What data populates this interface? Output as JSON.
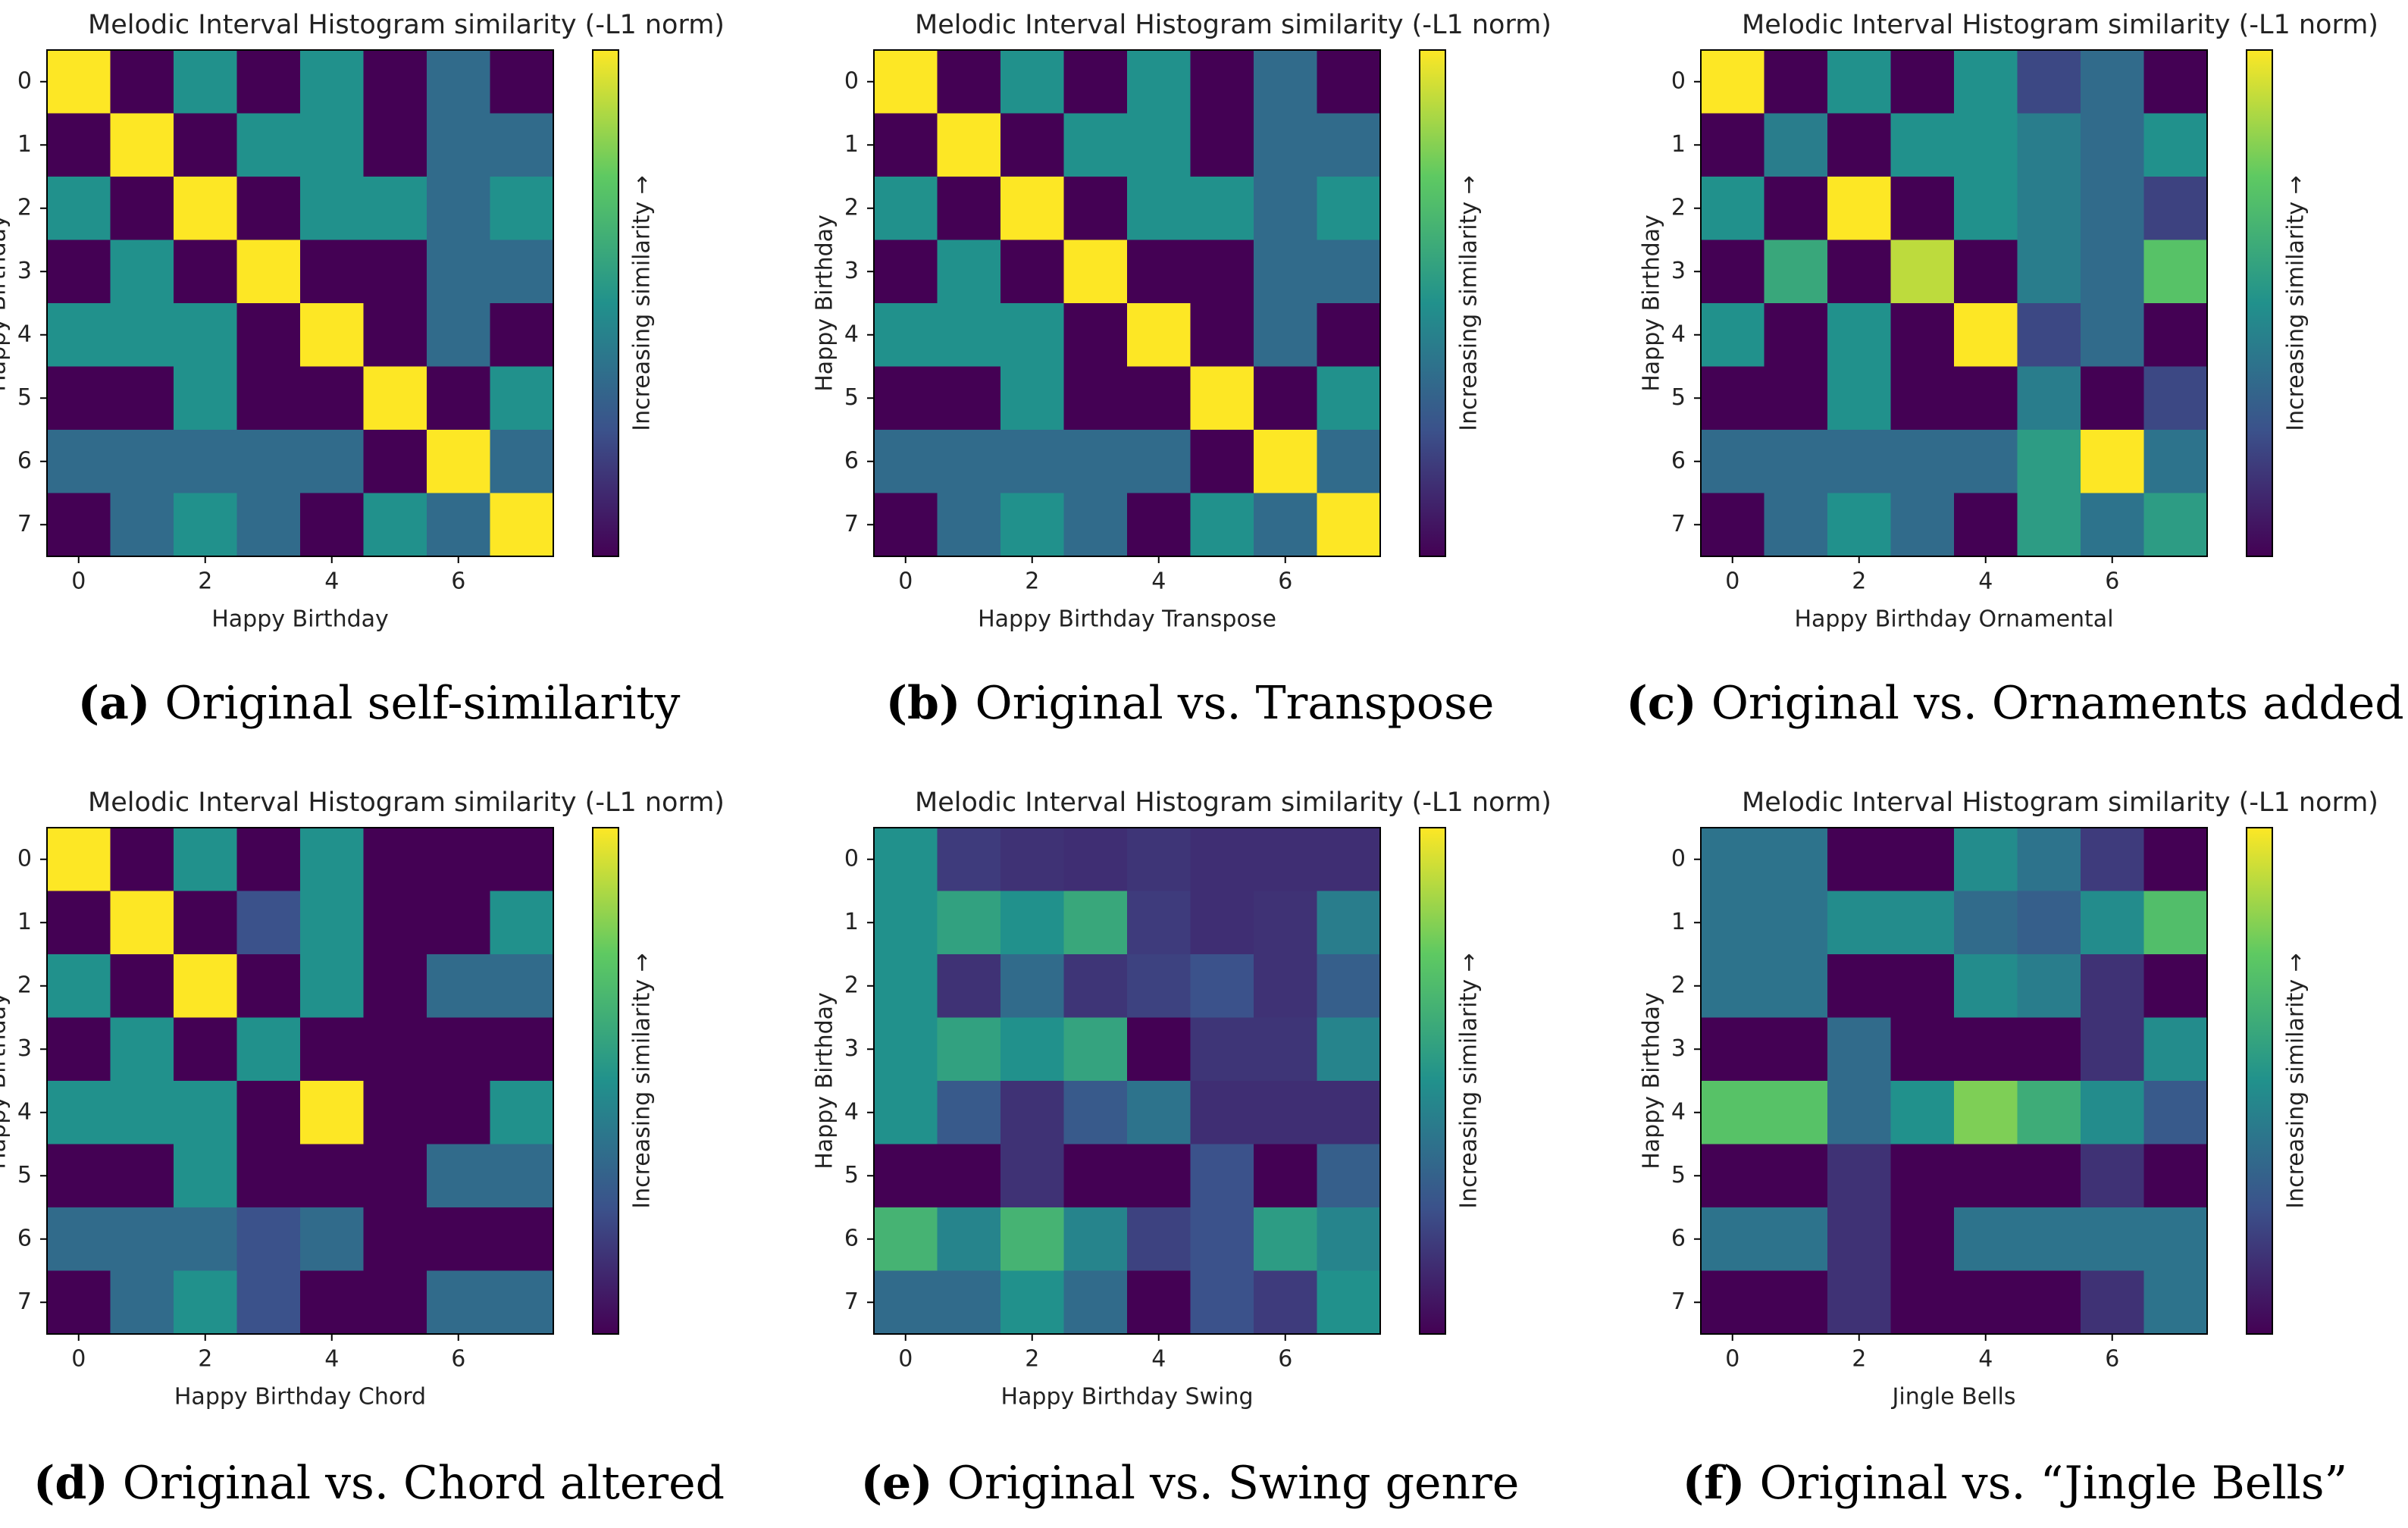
{
  "colormap": {
    "name": "viridis",
    "stops": [
      "#440154",
      "#3b528b",
      "#21918c",
      "#5ec962",
      "#fde725"
    ]
  },
  "colorbar_label": "Increasing similarity →",
  "chart_data": [
    {
      "type": "heatmap",
      "title": "Melodic Interval Histogram similarity (-L1 norm)",
      "xlabel": "Happy Birthday",
      "ylabel": "Happy Birthday",
      "x_ticks": [
        0,
        2,
        4,
        6
      ],
      "y_ticks": [
        0,
        1,
        2,
        3,
        4,
        5,
        6,
        7
      ],
      "vrange": [
        0,
        1
      ],
      "caption_letter": "(a)",
      "caption_text": " Original self-similarity",
      "values": [
        [
          1.0,
          0.0,
          0.5,
          0.0,
          0.5,
          0.0,
          0.35,
          0.0
        ],
        [
          0.0,
          1.0,
          0.0,
          0.5,
          0.5,
          0.0,
          0.35,
          0.35
        ],
        [
          0.5,
          0.0,
          1.0,
          0.0,
          0.5,
          0.5,
          0.35,
          0.5
        ],
        [
          0.0,
          0.5,
          0.0,
          1.0,
          0.0,
          0.0,
          0.35,
          0.35
        ],
        [
          0.5,
          0.5,
          0.5,
          0.0,
          1.0,
          0.0,
          0.35,
          0.0
        ],
        [
          0.0,
          0.0,
          0.5,
          0.0,
          0.0,
          1.0,
          0.0,
          0.5
        ],
        [
          0.35,
          0.35,
          0.35,
          0.35,
          0.35,
          0.0,
          1.0,
          0.35
        ],
        [
          0.0,
          0.35,
          0.5,
          0.35,
          0.0,
          0.5,
          0.35,
          1.0
        ]
      ]
    },
    {
      "type": "heatmap",
      "title": "Melodic Interval Histogram similarity (-L1 norm)",
      "xlabel": "Happy Birthday Transpose",
      "ylabel": "Happy Birthday",
      "x_ticks": [
        0,
        2,
        4,
        6
      ],
      "y_ticks": [
        0,
        1,
        2,
        3,
        4,
        5,
        6,
        7
      ],
      "vrange": [
        0,
        1
      ],
      "caption_letter": "(b)",
      "caption_text": " Original vs. Transpose",
      "values": [
        [
          1.0,
          0.0,
          0.5,
          0.0,
          0.5,
          0.0,
          0.35,
          0.0
        ],
        [
          0.0,
          1.0,
          0.0,
          0.5,
          0.5,
          0.0,
          0.35,
          0.35
        ],
        [
          0.5,
          0.0,
          1.0,
          0.0,
          0.5,
          0.5,
          0.35,
          0.5
        ],
        [
          0.0,
          0.5,
          0.0,
          1.0,
          0.0,
          0.0,
          0.35,
          0.35
        ],
        [
          0.5,
          0.5,
          0.5,
          0.0,
          1.0,
          0.0,
          0.35,
          0.0
        ],
        [
          0.0,
          0.0,
          0.5,
          0.0,
          0.0,
          1.0,
          0.0,
          0.5
        ],
        [
          0.35,
          0.35,
          0.35,
          0.35,
          0.35,
          0.0,
          1.0,
          0.35
        ],
        [
          0.0,
          0.35,
          0.5,
          0.35,
          0.0,
          0.5,
          0.35,
          1.0
        ]
      ]
    },
    {
      "type": "heatmap",
      "title": "Melodic Interval Histogram similarity (-L1 norm)",
      "xlabel": "Happy Birthday Ornamental",
      "ylabel": "Happy Birthday",
      "x_ticks": [
        0,
        2,
        4,
        6
      ],
      "y_ticks": [
        0,
        1,
        2,
        3,
        4,
        5,
        6,
        7
      ],
      "vrange": [
        0,
        1
      ],
      "caption_letter": "(c)",
      "caption_text": " Original vs. Ornaments added",
      "values": [
        [
          1.0,
          0.0,
          0.5,
          0.0,
          0.5,
          0.22,
          0.35,
          0.0
        ],
        [
          0.0,
          0.42,
          0.0,
          0.5,
          0.5,
          0.42,
          0.35,
          0.5
        ],
        [
          0.5,
          0.0,
          1.0,
          0.0,
          0.5,
          0.42,
          0.35,
          0.2
        ],
        [
          0.0,
          0.6,
          0.0,
          0.9,
          0.0,
          0.42,
          0.35,
          0.72
        ],
        [
          0.5,
          0.0,
          0.5,
          0.0,
          1.0,
          0.22,
          0.35,
          0.0
        ],
        [
          0.0,
          0.0,
          0.5,
          0.0,
          0.0,
          0.42,
          0.0,
          0.22
        ],
        [
          0.35,
          0.35,
          0.35,
          0.35,
          0.35,
          0.55,
          1.0,
          0.38
        ],
        [
          0.0,
          0.35,
          0.5,
          0.35,
          0.0,
          0.55,
          0.38,
          0.55
        ]
      ]
    },
    {
      "type": "heatmap",
      "title": "Melodic Interval Histogram similarity (-L1 norm)",
      "xlabel": "Happy Birthday Chord",
      "ylabel": "Happy Birthday",
      "x_ticks": [
        0,
        2,
        4,
        6
      ],
      "y_ticks": [
        0,
        1,
        2,
        3,
        4,
        5,
        6,
        7
      ],
      "vrange": [
        0,
        1
      ],
      "caption_letter": "(d)",
      "caption_text": " Original vs. Chord altered",
      "values": [
        [
          1.0,
          0.0,
          0.5,
          0.0,
          0.5,
          0.0,
          0.0,
          0.0
        ],
        [
          0.0,
          1.0,
          0.0,
          0.25,
          0.5,
          0.0,
          0.0,
          0.5
        ],
        [
          0.5,
          0.0,
          1.0,
          0.0,
          0.5,
          0.0,
          0.35,
          0.35
        ],
        [
          0.0,
          0.5,
          0.0,
          0.5,
          0.0,
          0.0,
          0.0,
          0.0
        ],
        [
          0.5,
          0.5,
          0.5,
          0.0,
          1.0,
          0.0,
          0.0,
          0.5
        ],
        [
          0.0,
          0.0,
          0.5,
          0.0,
          0.0,
          0.0,
          0.35,
          0.35
        ],
        [
          0.35,
          0.35,
          0.35,
          0.25,
          0.35,
          0.0,
          0.0,
          0.0
        ],
        [
          0.0,
          0.35,
          0.5,
          0.25,
          0.0,
          0.0,
          0.35,
          0.35
        ]
      ]
    },
    {
      "type": "heatmap",
      "title": "Melodic Interval Histogram similarity (-L1 norm)",
      "xlabel": "Happy Birthday Swing",
      "ylabel": "Happy Birthday",
      "x_ticks": [
        0,
        2,
        4,
        6
      ],
      "y_ticks": [
        0,
        1,
        2,
        3,
        4,
        5,
        6,
        7
      ],
      "vrange": [
        0,
        1
      ],
      "caption_letter": "(e)",
      "caption_text": " Original vs. Swing genre",
      "values": [
        [
          0.5,
          0.18,
          0.15,
          0.14,
          0.16,
          0.14,
          0.14,
          0.14
        ],
        [
          0.5,
          0.57,
          0.5,
          0.6,
          0.18,
          0.14,
          0.15,
          0.42
        ],
        [
          0.5,
          0.15,
          0.35,
          0.16,
          0.2,
          0.25,
          0.15,
          0.3
        ],
        [
          0.5,
          0.57,
          0.5,
          0.58,
          0.0,
          0.16,
          0.16,
          0.45
        ],
        [
          0.5,
          0.28,
          0.15,
          0.28,
          0.38,
          0.14,
          0.14,
          0.14
        ],
        [
          0.0,
          0.0,
          0.15,
          0.0,
          0.0,
          0.25,
          0.0,
          0.3
        ],
        [
          0.65,
          0.45,
          0.65,
          0.45,
          0.2,
          0.25,
          0.55,
          0.45
        ],
        [
          0.35,
          0.35,
          0.5,
          0.35,
          0.0,
          0.25,
          0.18,
          0.5
        ]
      ]
    },
    {
      "type": "heatmap",
      "title": "Melodic Interval Histogram similarity (-L1 norm)",
      "xlabel": "Jingle Bells",
      "ylabel": "Happy Birthday",
      "x_ticks": [
        0,
        2,
        4,
        6
      ],
      "y_ticks": [
        0,
        1,
        2,
        3,
        4,
        5,
        6,
        7
      ],
      "vrange": [
        0,
        1
      ],
      "caption_letter": "(f)",
      "caption_text": " Original vs. “Jingle Bells”",
      "values": [
        [
          0.38,
          0.38,
          0.0,
          0.0,
          0.48,
          0.38,
          0.18,
          0.0
        ],
        [
          0.38,
          0.38,
          0.48,
          0.48,
          0.35,
          0.3,
          0.48,
          0.7
        ],
        [
          0.38,
          0.38,
          0.0,
          0.0,
          0.48,
          0.42,
          0.15,
          0.0
        ],
        [
          0.0,
          0.0,
          0.35,
          0.0,
          0.0,
          0.0,
          0.15,
          0.48
        ],
        [
          0.72,
          0.72,
          0.35,
          0.5,
          0.8,
          0.62,
          0.48,
          0.28
        ],
        [
          0.0,
          0.0,
          0.15,
          0.0,
          0.0,
          0.0,
          0.15,
          0.0
        ],
        [
          0.38,
          0.38,
          0.15,
          0.0,
          0.38,
          0.38,
          0.38,
          0.38
        ],
        [
          0.0,
          0.0,
          0.15,
          0.0,
          0.0,
          0.0,
          0.15,
          0.38
        ]
      ]
    }
  ]
}
